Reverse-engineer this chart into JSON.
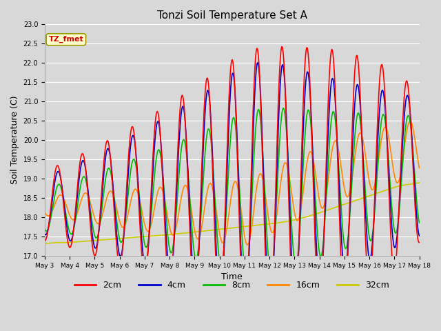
{
  "title": "Tonzi Soil Temperature Set A",
  "xlabel": "Time",
  "ylabel": "Soil Temperature (C)",
  "ylim": [
    17.0,
    23.0
  ],
  "yticks": [
    17.0,
    17.5,
    18.0,
    18.5,
    19.0,
    19.5,
    20.0,
    20.5,
    21.0,
    21.5,
    22.0,
    22.5,
    23.0
  ],
  "series_colors": {
    "2cm": "#ff0000",
    "4cm": "#0000cc",
    "8cm": "#00bb00",
    "16cm": "#ff8800",
    "32cm": "#cccc00"
  },
  "legend_label": "TZ_fmet",
  "bg_color": "#d8d8d8",
  "annotation_box_color": "#ffffcc",
  "annotation_text_color": "#cc0000",
  "linewidth": 1.2,
  "num_days": 15,
  "start_day": 3,
  "points_per_day": 48
}
